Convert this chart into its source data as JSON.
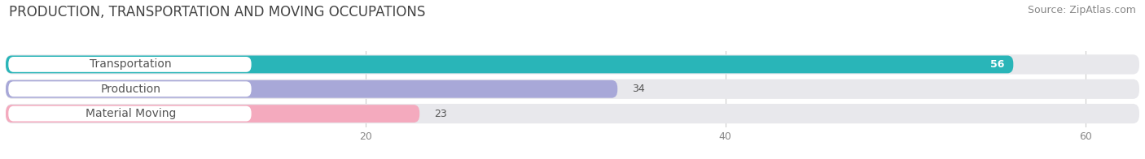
{
  "title": "PRODUCTION, TRANSPORTATION AND MOVING OCCUPATIONS",
  "source": "Source: ZipAtlas.com",
  "categories": [
    "Transportation",
    "Production",
    "Material Moving"
  ],
  "values": [
    56,
    34,
    23
  ],
  "bar_colors": [
    "#29b5b8",
    "#a8a8d8",
    "#f4aabe"
  ],
  "xlim": [
    0,
    63
  ],
  "xticks": [
    20,
    40,
    60
  ],
  "background_color": "#ffffff",
  "bar_bg_color": "#e8e8ec",
  "row_bg_colors": [
    "#f5f5f8",
    "#f5f5f8",
    "#f5f5f8"
  ],
  "title_fontsize": 12,
  "source_fontsize": 9,
  "label_fontsize": 10,
  "value_fontsize": 9
}
